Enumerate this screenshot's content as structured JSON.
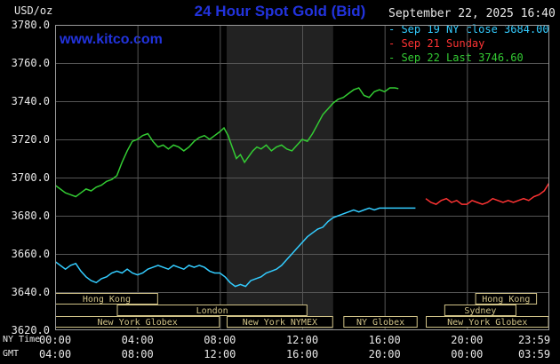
{
  "header": {
    "units_label": "USD/oz",
    "title": "24 Hour Spot Gold (Bid)",
    "datetime": "September 22, 2025 16:40",
    "watermark": "www.kitco.com"
  },
  "legend": [
    {
      "label": "- Sep 19 NY close 3684.00",
      "color": "#33ccff"
    },
    {
      "label": "- Sep 21 Sunday",
      "color": "#ff3333"
    },
    {
      "label": "- Sep 22 Last 3746.60",
      "color": "#33cc33"
    }
  ],
  "axes": {
    "ny_label": "NY Time",
    "gmt_label": "GMT",
    "x_ticks": [
      {
        "hour": 0,
        "ny": "00:00",
        "gmt": "04:00"
      },
      {
        "hour": 4,
        "ny": "04:00",
        "gmt": "08:00"
      },
      {
        "hour": 8,
        "ny": "08:00",
        "gmt": "12:00"
      },
      {
        "hour": 12,
        "ny": "12:00",
        "gmt": "16:00"
      },
      {
        "hour": 16,
        "ny": "16:00",
        "gmt": "20:00"
      },
      {
        "hour": 20,
        "ny": "20:00",
        "gmt": "00:00"
      },
      {
        "hour": 23.983,
        "ny": "23:59",
        "gmt": "03:59"
      }
    ],
    "y_ticks": [
      {
        "value": 3780,
        "label": "3780.0"
      },
      {
        "value": 3760,
        "label": "3760.0"
      },
      {
        "value": 3740,
        "label": "3740.0"
      },
      {
        "value": 3720,
        "label": "3720.0"
      },
      {
        "value": 3700,
        "label": "3700.0"
      },
      {
        "value": 3680,
        "label": "3680.0"
      },
      {
        "value": 3660,
        "label": "3660.0"
      },
      {
        "value": 3640,
        "label": "3640.0"
      },
      {
        "value": 3620,
        "label": "3620.0"
      }
    ]
  },
  "chart_data": {
    "type": "line",
    "title": "24 Hour Spot Gold (Bid)",
    "ylabel": "USD/oz",
    "x_unit": "hours, NY time",
    "xlim": [
      0,
      24
    ],
    "ylim": [
      3620,
      3780
    ],
    "grid": true,
    "x_grid_hours": [
      4,
      8,
      12,
      16,
      20
    ],
    "y_grid_values": [
      3640,
      3660,
      3680,
      3700,
      3720,
      3740,
      3760
    ],
    "colors": {
      "grid": "#555555",
      "border": "#999999",
      "session": "#d0c287",
      "band": "#222222"
    },
    "nymex_band": {
      "start_hour": 8.33,
      "end_hour": 13.5
    },
    "series": [
      {
        "id": "sep19",
        "name": "Sep 19 NY close",
        "close": 3684.0,
        "color": "#33ccff",
        "points": [
          [
            0,
            3656
          ],
          [
            0.25,
            3654
          ],
          [
            0.5,
            3652
          ],
          [
            0.75,
            3654
          ],
          [
            1,
            3655
          ],
          [
            1.25,
            3651
          ],
          [
            1.5,
            3648
          ],
          [
            1.75,
            3646
          ],
          [
            2,
            3645
          ],
          [
            2.25,
            3647
          ],
          [
            2.5,
            3648
          ],
          [
            2.75,
            3650
          ],
          [
            3,
            3651
          ],
          [
            3.25,
            3650
          ],
          [
            3.5,
            3652
          ],
          [
            3.75,
            3650
          ],
          [
            4,
            3649
          ],
          [
            4.25,
            3650
          ],
          [
            4.5,
            3652
          ],
          [
            4.75,
            3653
          ],
          [
            5,
            3654
          ],
          [
            5.25,
            3653
          ],
          [
            5.5,
            3652
          ],
          [
            5.75,
            3654
          ],
          [
            6,
            3653
          ],
          [
            6.25,
            3652
          ],
          [
            6.5,
            3654
          ],
          [
            6.75,
            3653
          ],
          [
            7,
            3654
          ],
          [
            7.25,
            3653
          ],
          [
            7.5,
            3651
          ],
          [
            7.75,
            3650
          ],
          [
            8,
            3650
          ],
          [
            8.25,
            3648
          ],
          [
            8.5,
            3645
          ],
          [
            8.75,
            3643
          ],
          [
            9,
            3644
          ],
          [
            9.25,
            3643
          ],
          [
            9.5,
            3646
          ],
          [
            9.75,
            3647
          ],
          [
            10,
            3648
          ],
          [
            10.25,
            3650
          ],
          [
            10.5,
            3651
          ],
          [
            10.75,
            3652
          ],
          [
            11,
            3654
          ],
          [
            11.25,
            3657
          ],
          [
            11.5,
            3660
          ],
          [
            11.75,
            3663
          ],
          [
            12,
            3666
          ],
          [
            12.25,
            3669
          ],
          [
            12.5,
            3671
          ],
          [
            12.75,
            3673
          ],
          [
            13,
            3674
          ],
          [
            13.25,
            3677
          ],
          [
            13.5,
            3679
          ],
          [
            13.75,
            3680
          ],
          [
            14,
            3681
          ],
          [
            14.25,
            3682
          ],
          [
            14.5,
            3683
          ],
          [
            14.75,
            3682
          ],
          [
            15,
            3683
          ],
          [
            15.25,
            3684
          ],
          [
            15.5,
            3683
          ],
          [
            15.75,
            3684
          ],
          [
            16,
            3684
          ],
          [
            16.5,
            3684
          ],
          [
            17,
            3684
          ],
          [
            17.5,
            3684
          ]
        ]
      },
      {
        "id": "sep21",
        "name": "Sep 21 Sunday",
        "color": "#ff3333",
        "points": [
          [
            18,
            3689
          ],
          [
            18.25,
            3687
          ],
          [
            18.5,
            3686
          ],
          [
            18.75,
            3688
          ],
          [
            19,
            3689
          ],
          [
            19.25,
            3687
          ],
          [
            19.5,
            3688
          ],
          [
            19.75,
            3686
          ],
          [
            20,
            3686
          ],
          [
            20.25,
            3688
          ],
          [
            20.5,
            3687
          ],
          [
            20.75,
            3686
          ],
          [
            21,
            3687
          ],
          [
            21.25,
            3689
          ],
          [
            21.5,
            3688
          ],
          [
            21.75,
            3687
          ],
          [
            22,
            3688
          ],
          [
            22.25,
            3687
          ],
          [
            22.5,
            3688
          ],
          [
            22.75,
            3689
          ],
          [
            23,
            3688
          ],
          [
            23.25,
            3690
          ],
          [
            23.5,
            3691
          ],
          [
            23.75,
            3693
          ],
          [
            23.98,
            3697
          ]
        ]
      },
      {
        "id": "sep22",
        "name": "Sep 22 Last",
        "last": 3746.6,
        "color": "#33cc33",
        "points": [
          [
            0,
            3696
          ],
          [
            0.25,
            3694
          ],
          [
            0.5,
            3692
          ],
          [
            0.75,
            3691
          ],
          [
            1,
            3690
          ],
          [
            1.25,
            3692
          ],
          [
            1.5,
            3694
          ],
          [
            1.75,
            3693
          ],
          [
            2,
            3695
          ],
          [
            2.25,
            3696
          ],
          [
            2.5,
            3698
          ],
          [
            2.75,
            3699
          ],
          [
            3,
            3701
          ],
          [
            3.25,
            3708
          ],
          [
            3.5,
            3714
          ],
          [
            3.75,
            3719
          ],
          [
            4,
            3720
          ],
          [
            4.25,
            3722
          ],
          [
            4.5,
            3723
          ],
          [
            4.75,
            3719
          ],
          [
            5,
            3716
          ],
          [
            5.25,
            3717
          ],
          [
            5.5,
            3715
          ],
          [
            5.75,
            3717
          ],
          [
            6,
            3716
          ],
          [
            6.25,
            3714
          ],
          [
            6.5,
            3716
          ],
          [
            6.75,
            3719
          ],
          [
            7,
            3721
          ],
          [
            7.25,
            3722
          ],
          [
            7.5,
            3720
          ],
          [
            7.75,
            3722
          ],
          [
            8,
            3724
          ],
          [
            8.2,
            3726
          ],
          [
            8.4,
            3722
          ],
          [
            8.6,
            3716
          ],
          [
            8.8,
            3710
          ],
          [
            9,
            3712
          ],
          [
            9.2,
            3708
          ],
          [
            9.4,
            3711
          ],
          [
            9.6,
            3714
          ],
          [
            9.8,
            3716
          ],
          [
            10,
            3715
          ],
          [
            10.25,
            3717
          ],
          [
            10.5,
            3714
          ],
          [
            10.75,
            3716
          ],
          [
            11,
            3717
          ],
          [
            11.25,
            3715
          ],
          [
            11.5,
            3714
          ],
          [
            11.75,
            3717
          ],
          [
            12,
            3720
          ],
          [
            12.25,
            3719
          ],
          [
            12.5,
            3723
          ],
          [
            12.75,
            3728
          ],
          [
            13,
            3733
          ],
          [
            13.25,
            3736
          ],
          [
            13.5,
            3739
          ],
          [
            13.75,
            3741
          ],
          [
            14,
            3742
          ],
          [
            14.25,
            3744
          ],
          [
            14.5,
            3746
          ],
          [
            14.75,
            3747
          ],
          [
            15,
            3743
          ],
          [
            15.25,
            3742
          ],
          [
            15.5,
            3745
          ],
          [
            15.75,
            3746
          ],
          [
            16,
            3745
          ],
          [
            16.25,
            3747
          ],
          [
            16.5,
            3747
          ],
          [
            16.67,
            3746.6
          ]
        ]
      }
    ],
    "sessions": [
      {
        "row": 0,
        "start": 0,
        "end": 5,
        "label": "Hong Kong"
      },
      {
        "row": 0,
        "start": 20.4,
        "end": 23.4,
        "label": "Hong Kong"
      },
      {
        "row": 1,
        "start": 3,
        "end": 12.25,
        "label": "London"
      },
      {
        "row": 1,
        "start": 18.9,
        "end": 22.4,
        "label": "Sydney"
      },
      {
        "row": 2,
        "start": 0,
        "end": 8,
        "label": "New York Globex"
      },
      {
        "row": 2,
        "start": 8.33,
        "end": 13.5,
        "label": "New York NYMEX"
      },
      {
        "row": 2,
        "start": 14,
        "end": 17.6,
        "label": "NY Globex"
      },
      {
        "row": 2,
        "start": 18,
        "end": 23.98,
        "label": "New York Globex"
      }
    ]
  }
}
